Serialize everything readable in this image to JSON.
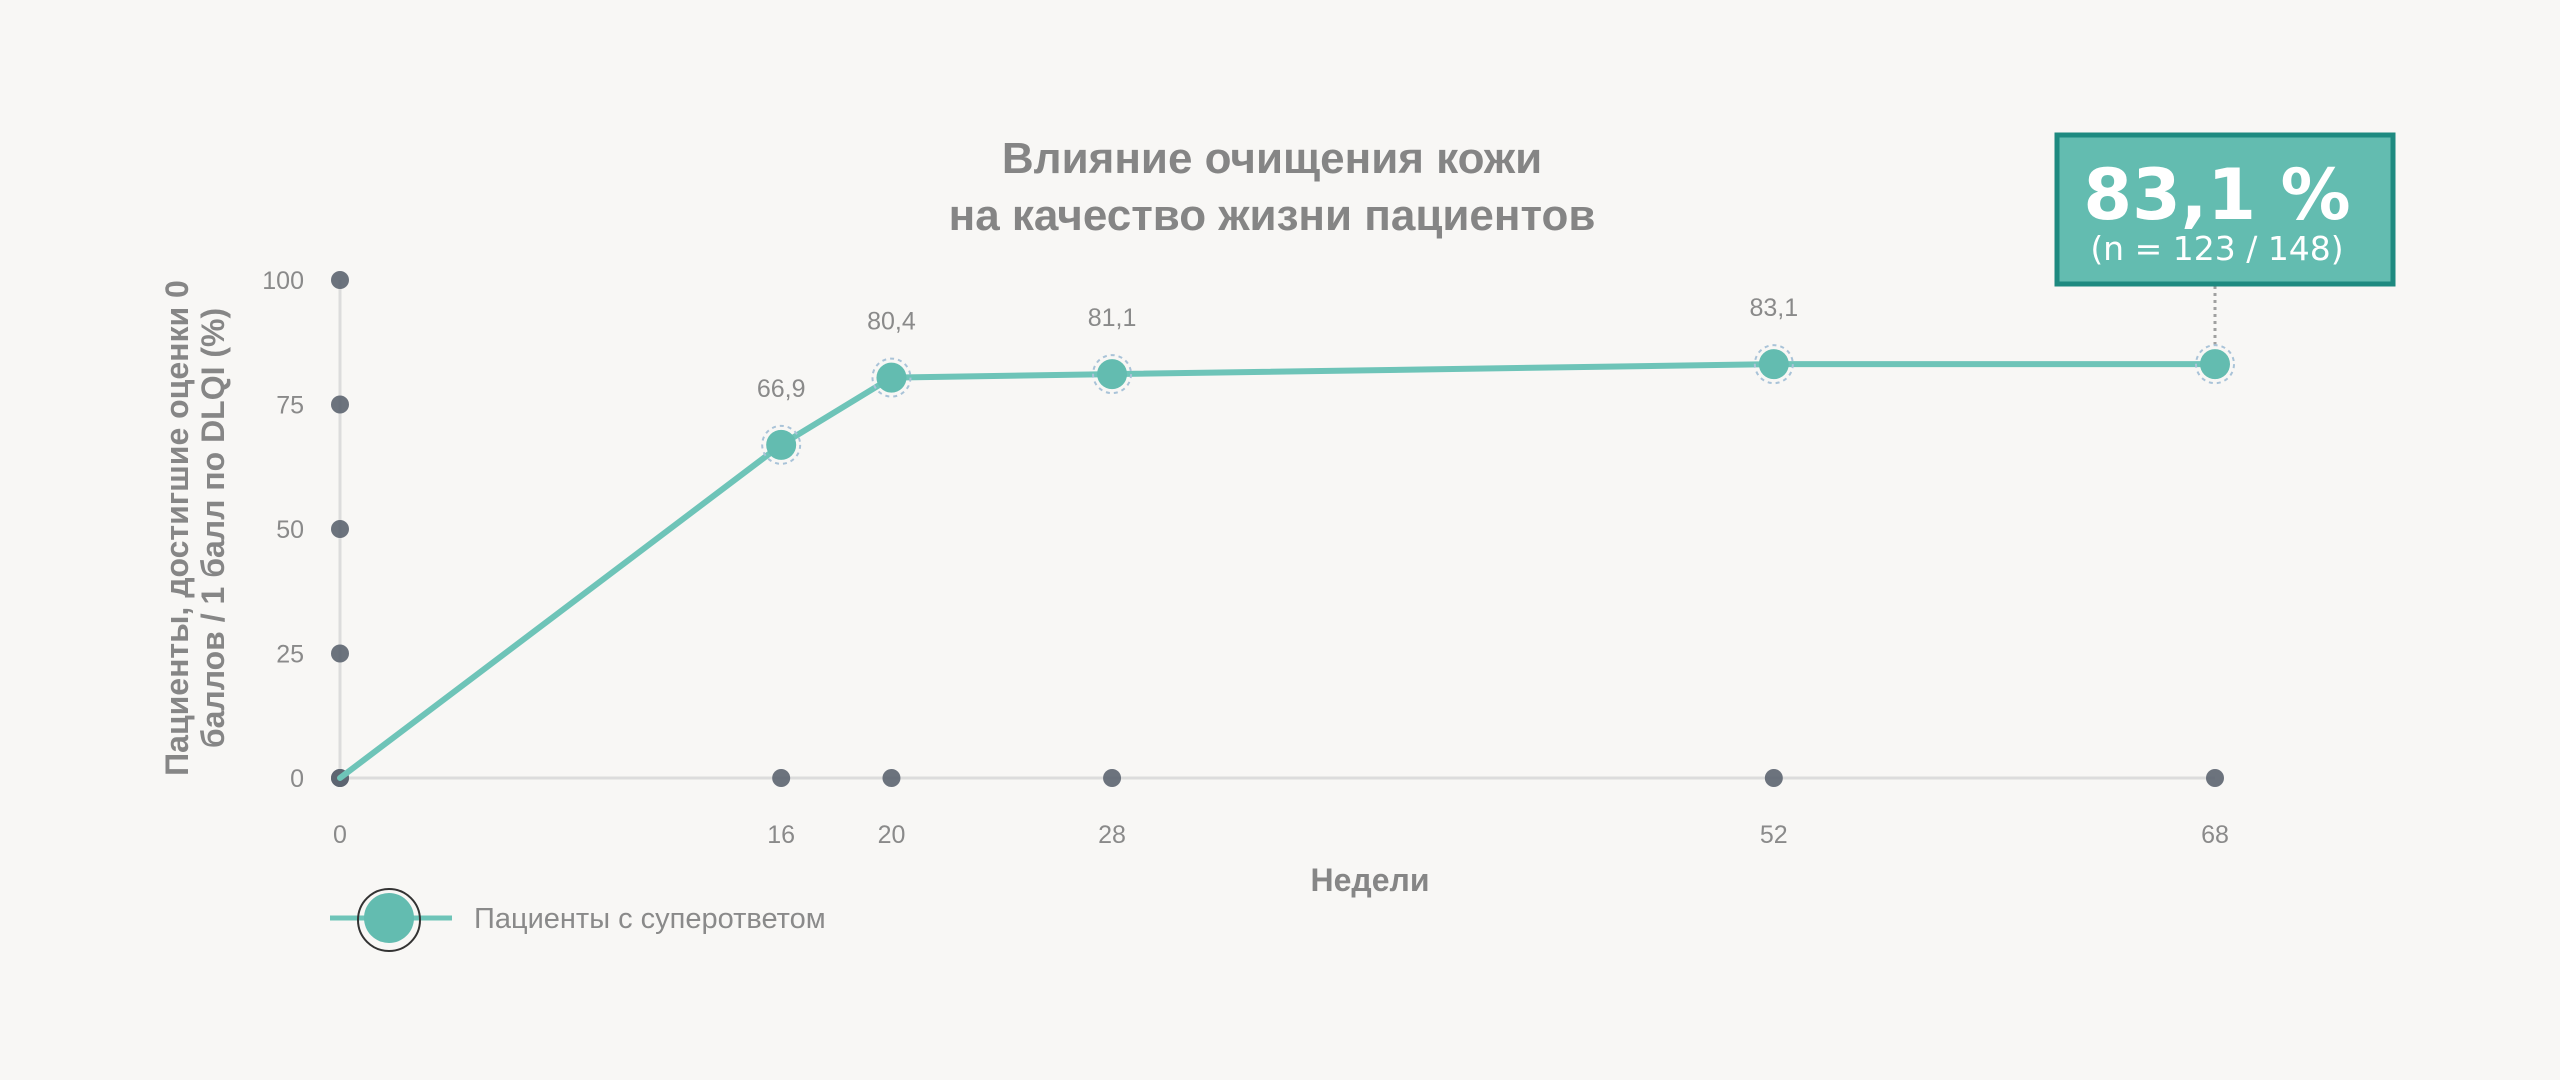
{
  "chart_data": {
    "type": "line",
    "title_lines": [
      "Влияние очищения кожи",
      "на качество жизни пациентов"
    ],
    "xlabel": "Недели",
    "ylabel_lines": [
      "Пациенты, достигшие оценки 0",
      "баллов / 1 балл по DLQI (%)"
    ],
    "x_ticks": [
      "0",
      "16",
      "20",
      "28",
      "52",
      "68"
    ],
    "y_ticks": [
      "0",
      "25",
      "50",
      "75",
      "100"
    ],
    "ylim": [
      0,
      100
    ],
    "xlim": [
      0,
      68
    ],
    "grid": false,
    "legend_position": "bottom-left",
    "series": [
      {
        "name": "Пациенты  с суперответом",
        "color": "#6ec4b8",
        "x": [
          0,
          16,
          20,
          28,
          52,
          68
        ],
        "y": [
          0,
          66.9,
          80.4,
          81.1,
          83.1,
          83.1
        ],
        "labels": [
          "",
          "66,9",
          "80,4",
          "81,1",
          "83,1",
          ""
        ]
      }
    ],
    "callout": {
      "value": "83,1 %",
      "sub": "(n = 123 / 148)",
      "at_x": 68,
      "fill_color": "#63bcb0",
      "border_color": "#1e8a80"
    }
  },
  "colors": {
    "axis": "#dcdcdc",
    "tick_marker": "#5c6470",
    "line": "#6ec4b8",
    "point": "#63bcb0"
  }
}
